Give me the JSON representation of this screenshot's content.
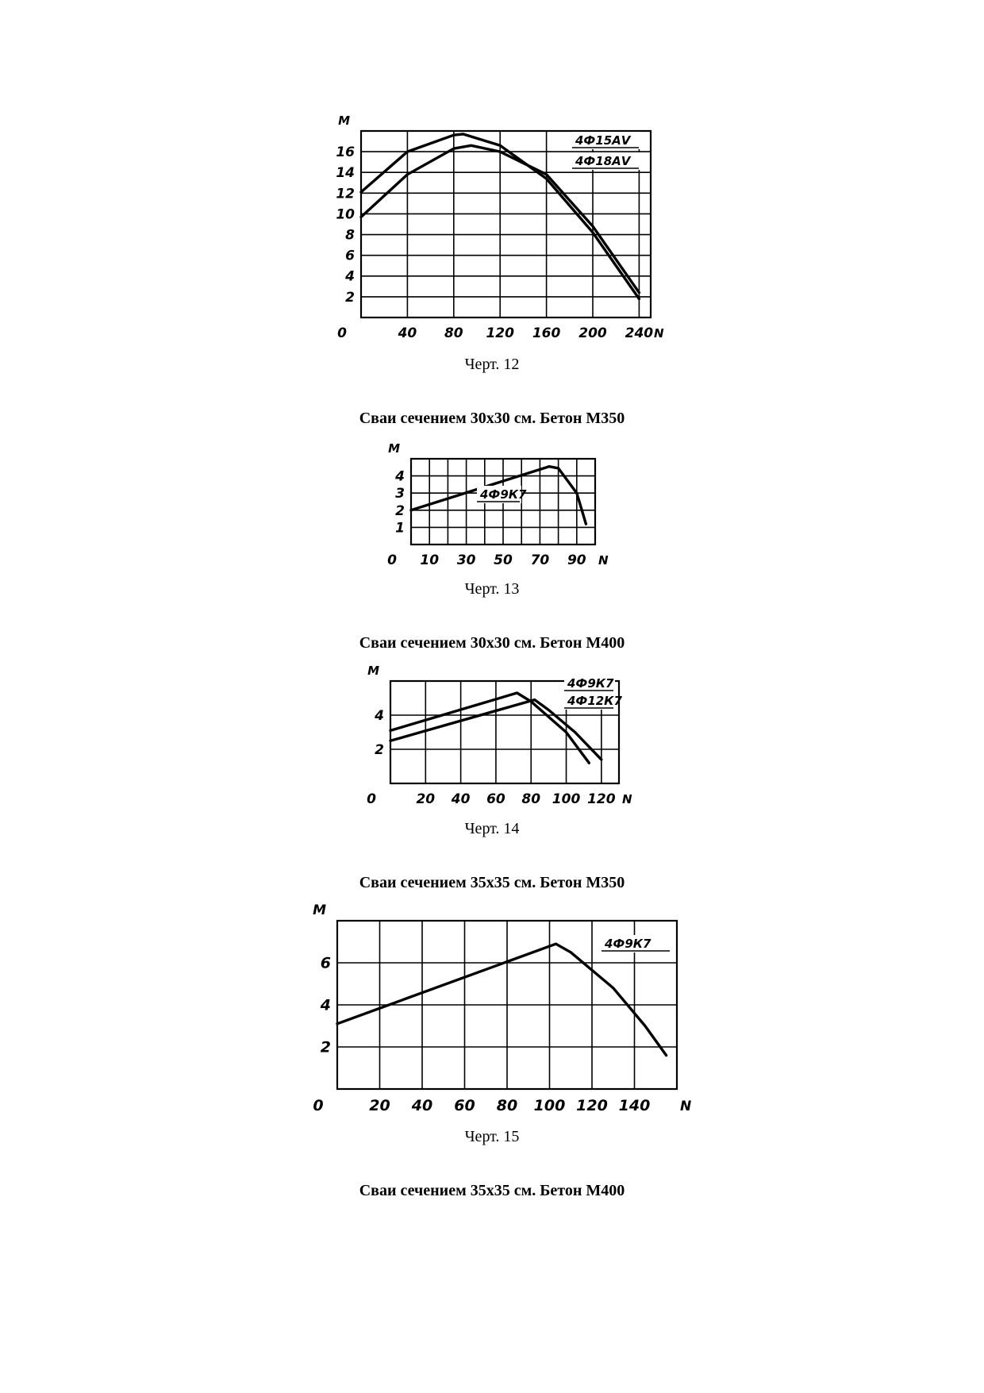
{
  "figures": [
    {
      "caption": "Черт. 12",
      "heading": "Сваи сечением 30х30 см. Бетон М350"
    },
    {
      "caption": "Черт. 13",
      "heading": "Сваи сечением 30х30 см. Бетон М400"
    },
    {
      "caption": "Черт. 14",
      "heading": "Сваи сечением 35х35 см. Бетон М350"
    },
    {
      "caption": "Черт. 15",
      "heading": "Сваи сечением 35х35 см. Бетон М400"
    }
  ],
  "chart_data": [
    {
      "type": "line",
      "xlabel": "N",
      "ylabel": "M",
      "origin_label": "0",
      "xlim": [
        0,
        250
      ],
      "ylim": [
        0,
        18
      ],
      "x_ticks": [
        40,
        80,
        120,
        160,
        200,
        240
      ],
      "x_tick_labels": [
        "40",
        "80",
        "120",
        "160",
        "200",
        "240"
      ],
      "y_ticks": [
        2,
        4,
        6,
        8,
        10,
        12,
        14,
        16
      ],
      "y_tick_labels": [
        "2",
        "4",
        "6",
        "8",
        "10",
        "12",
        "14",
        "16"
      ],
      "grid": true,
      "legend_position": "top-right",
      "series": [
        {
          "name": "4Ф15АⅤ",
          "points": [
            [
              0,
              9.7
            ],
            [
              40,
              13.8
            ],
            [
              80,
              16.3
            ],
            [
              95,
              16.6
            ],
            [
              120,
              16.0
            ],
            [
              160,
              13.8
            ],
            [
              200,
              8.8
            ],
            [
              240,
              2.4
            ]
          ]
        },
        {
          "name": "4Ф18АⅤ",
          "points": [
            [
              0,
              12.1
            ],
            [
              40,
              16.0
            ],
            [
              80,
              17.6
            ],
            [
              88,
              17.7
            ],
            [
              120,
              16.6
            ],
            [
              160,
              13.4
            ],
            [
              200,
              8.2
            ],
            [
              240,
              1.8
            ]
          ]
        }
      ]
    },
    {
      "type": "line",
      "xlabel": "N",
      "ylabel": "M",
      "origin_label": "0",
      "xlim": [
        0,
        100
      ],
      "ylim": [
        0,
        5
      ],
      "x_ticks": [
        10,
        30,
        50,
        70,
        90
      ],
      "x_tick_labels": [
        "10",
        "30",
        "50",
        "70",
        "90"
      ],
      "y_ticks": [
        1,
        2,
        3,
        4
      ],
      "y_tick_labels": [
        "1",
        "2",
        "3",
        "4"
      ],
      "grid": true,
      "legend_position": "center",
      "series": [
        {
          "name": "4Ф9К7",
          "points": [
            [
              0,
              2.0
            ],
            [
              75,
              4.55
            ],
            [
              80,
              4.45
            ],
            [
              90,
              3.0
            ],
            [
              95,
              1.2
            ]
          ]
        }
      ]
    },
    {
      "type": "line",
      "xlabel": "N",
      "ylabel": "M",
      "origin_label": "0",
      "xlim": [
        0,
        130
      ],
      "ylim": [
        0,
        6
      ],
      "x_ticks": [
        20,
        40,
        60,
        80,
        100,
        120
      ],
      "x_tick_labels": [
        "20",
        "40",
        "60",
        "80",
        "100",
        "120"
      ],
      "y_ticks": [
        2,
        4
      ],
      "y_tick_labels": [
        "2",
        "4"
      ],
      "grid": true,
      "legend_position": "top-right",
      "series": [
        {
          "name": "4Ф9К7",
          "points": [
            [
              0,
              3.1
            ],
            [
              72,
              5.3
            ],
            [
              80,
              4.8
            ],
            [
              100,
              3.0
            ],
            [
              113,
              1.2
            ]
          ]
        },
        {
          "name": "4Ф12К7",
          "points": [
            [
              0,
              2.5
            ],
            [
              82,
              4.9
            ],
            [
              90,
              4.3
            ],
            [
              105,
              3.0
            ],
            [
              120,
              1.4
            ]
          ]
        }
      ]
    },
    {
      "type": "line",
      "xlabel": "N",
      "ylabel": "M",
      "origin_label": "0",
      "xlim": [
        0,
        155
      ],
      "ylim": [
        0,
        8
      ],
      "x_ticks": [
        20,
        40,
        60,
        80,
        100,
        120,
        140
      ],
      "x_tick_labels": [
        "20",
        "40",
        "60",
        "80",
        "100",
        "120",
        "140"
      ],
      "y_ticks": [
        2,
        4,
        6
      ],
      "y_tick_labels": [
        "2",
        "4",
        "6"
      ],
      "grid": true,
      "legend_position": "top-right",
      "series": [
        {
          "name": "4Ф9К7",
          "points": [
            [
              0,
              3.1
            ],
            [
              103,
              6.9
            ],
            [
              110,
              6.5
            ],
            [
              130,
              4.8
            ],
            [
              145,
              3.0
            ],
            [
              155,
              1.6
            ]
          ]
        }
      ]
    }
  ]
}
